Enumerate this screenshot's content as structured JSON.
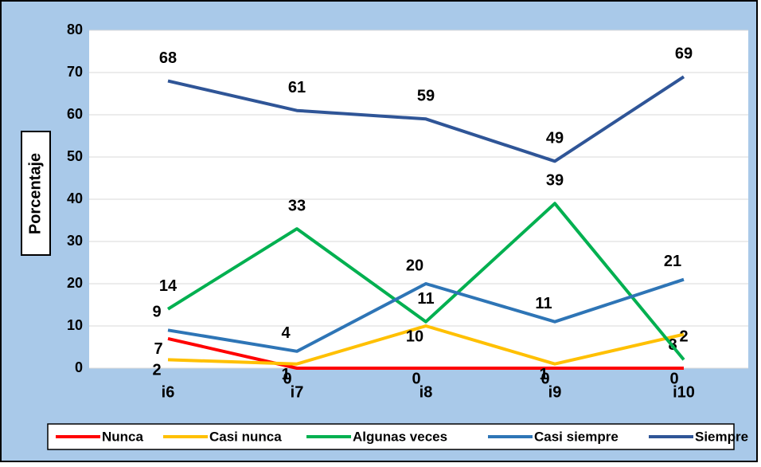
{
  "chart_data": {
    "type": "line",
    "y_label": "Porcentaje",
    "categories": [
      "i6",
      "i7",
      "i8",
      "i9",
      "i10"
    ],
    "series": [
      {
        "name": "Nunca",
        "color": "#ff0000",
        "values": [
          7,
          0,
          0,
          0,
          0
        ]
      },
      {
        "name": "Casi nunca",
        "color": "#ffc000",
        "values": [
          2,
          1,
          10,
          1,
          8
        ]
      },
      {
        "name": "Algunas veces",
        "color": "#00b050",
        "values": [
          14,
          33,
          11,
          39,
          2
        ]
      },
      {
        "name": "Casi siempre",
        "color": "#2e75b6",
        "values": [
          9,
          4,
          20,
          11,
          21
        ]
      },
      {
        "name": "Siempre",
        "color": "#2f5597",
        "values": [
          68,
          61,
          59,
          49,
          69
        ]
      }
    ],
    "ylim": [
      0,
      80
    ],
    "yticks": [
      0,
      10,
      20,
      30,
      40,
      50,
      60,
      70,
      80
    ],
    "grid": true,
    "legend": "bottom"
  }
}
